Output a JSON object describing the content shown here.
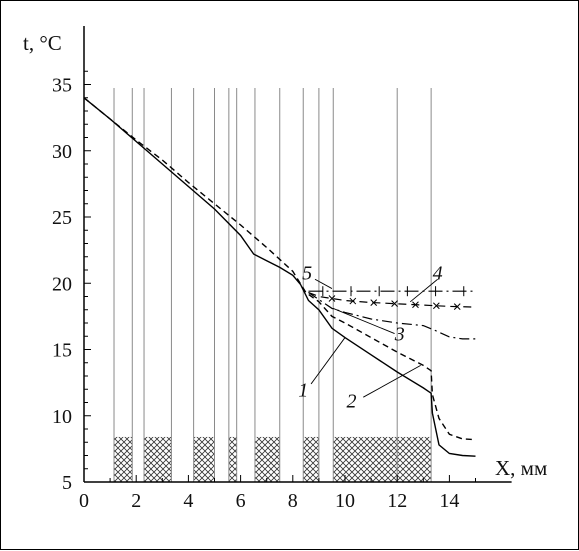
{
  "chart_data": {
    "type": "line",
    "ylabel": "t, °C",
    "xlabel": "X, мм",
    "xlim": [
      0,
      16
    ],
    "ylim": [
      5,
      37
    ],
    "xticks": [
      "0",
      "2",
      "4",
      "6",
      "8",
      "10",
      "12",
      "14"
    ],
    "yticks": [
      "5",
      "10",
      "15",
      "20",
      "25",
      "30",
      "35"
    ],
    "grid": "vertical lines at layer boundaries",
    "layer_boundaries": [
      1.15,
      1.85,
      2.3,
      3.35,
      4.2,
      5.0,
      5.55,
      5.85,
      6.55,
      7.5,
      8.4,
      9.0,
      9.55,
      12.0,
      13.3
    ],
    "hatched_layers": [
      [
        1.15,
        1.85
      ],
      [
        2.3,
        3.35
      ],
      [
        4.2,
        5.0
      ],
      [
        5.55,
        5.85
      ],
      [
        6.55,
        7.5
      ],
      [
        8.4,
        9.0
      ],
      [
        9.55,
        13.3
      ]
    ],
    "hatch_top": 8.4,
    "series": [
      {
        "name": "1",
        "style": "solid",
        "x": [
          0,
          1,
          2,
          3,
          4,
          5,
          6,
          6.5,
          7,
          7.5,
          8,
          8.3,
          8.6,
          9.0,
          9.5,
          10,
          11,
          12,
          13,
          13.3,
          13.35,
          13.6,
          14,
          14.5,
          15
        ],
        "y": [
          34,
          32.4,
          30.7,
          29.0,
          27.3,
          25.6,
          23.6,
          22.2,
          21.7,
          21.2,
          20.6,
          19.9,
          18.7,
          18.0,
          16.6,
          15.9,
          14.6,
          13.3,
          12.1,
          11.7,
          10.2,
          7.8,
          7.15,
          7.0,
          6.95
        ]
      },
      {
        "name": "2",
        "style": "dashed",
        "x": [
          0,
          1,
          2,
          3,
          4,
          5,
          6,
          7,
          8,
          8.5,
          9,
          9.5,
          10,
          11,
          12,
          13,
          13.3,
          13.35,
          13.6,
          14,
          14.5,
          15
        ],
        "y": [
          34,
          32.4,
          30.8,
          29.3,
          27.6,
          26.0,
          24.4,
          22.7,
          20.9,
          19.3,
          18.6,
          17.5,
          17.0,
          15.9,
          14.8,
          13.8,
          13.4,
          11.6,
          9.8,
          8.6,
          8.25,
          8.2
        ]
      },
      {
        "name": "3",
        "style": "dash-dot",
        "x": [
          8.6,
          9.5,
          10,
          11,
          12,
          13,
          13.5,
          14,
          14.5,
          15
        ],
        "y": [
          19.3,
          18.1,
          17.8,
          17.3,
          17.0,
          16.8,
          16.4,
          15.95,
          15.8,
          15.8
        ]
      },
      {
        "name": "4",
        "style": "dash-cross",
        "x": [
          8.6,
          9.0,
          10,
          11,
          12,
          13,
          14,
          15
        ],
        "y": [
          19.3,
          19.0,
          18.7,
          18.55,
          18.45,
          18.35,
          18.25,
          18.2
        ]
      },
      {
        "name": "5",
        "style": "dash-bar",
        "x": [
          8.6,
          10,
          12,
          14,
          15
        ],
        "y": [
          19.4,
          19.4,
          19.4,
          19.4,
          19.4
        ]
      }
    ],
    "annotations": [
      {
        "text": "5",
        "target": "5"
      },
      {
        "text": "4",
        "target": "4"
      },
      {
        "text": "3",
        "target": "3"
      },
      {
        "text": "1",
        "target": "1"
      },
      {
        "text": "2",
        "target": "2"
      }
    ]
  }
}
